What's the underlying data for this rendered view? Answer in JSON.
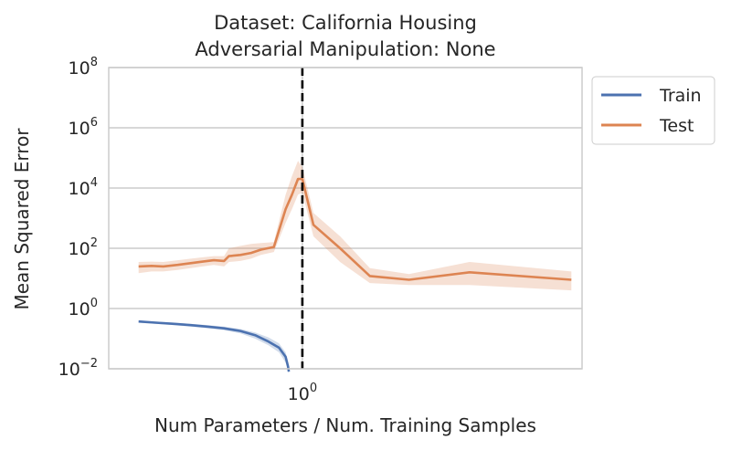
{
  "chart_data": {
    "type": "line",
    "title": "Dataset: California Housing",
    "subtitle": "Adversarial Manipulation: None",
    "xlabel": "Num Parameters / Num. Training Samples",
    "ylabel": "Mean Squared Error",
    "xscale": "log",
    "yscale": "log",
    "xlim": [
      0.26,
      7.0
    ],
    "ylim": [
      0.01,
      100000000
    ],
    "x_ticks": [
      {
        "value": 1,
        "base": "10",
        "exp": "0"
      }
    ],
    "y_ticks": [
      {
        "value": 0.01,
        "base": "10",
        "exp": "−2"
      },
      {
        "value": 1,
        "base": "10",
        "exp": "0"
      },
      {
        "value": 100,
        "base": "10",
        "exp": "2"
      },
      {
        "value": 10000,
        "base": "10",
        "exp": "4"
      },
      {
        "value": 1000000,
        "base": "10",
        "exp": "6"
      },
      {
        "value": 100000000,
        "base": "10",
        "exp": "8"
      }
    ],
    "grid": true,
    "legend_position": "outside-top-right",
    "vline": {
      "x": 1,
      "style": "dashed",
      "color": "#000000"
    },
    "series": [
      {
        "name": "Train",
        "color": "#4c72b0",
        "x": [
          0.32,
          0.36,
          0.41,
          0.46,
          0.52,
          0.58,
          0.65,
          0.72,
          0.79,
          0.85,
          0.89,
          0.905,
          0.91
        ],
        "y": [
          0.37,
          0.34,
          0.31,
          0.28,
          0.25,
          0.22,
          0.18,
          0.13,
          0.08,
          0.05,
          0.025,
          0.012,
          0.008
        ],
        "lower": [
          0.34,
          0.31,
          0.28,
          0.25,
          0.22,
          0.19,
          0.15,
          0.1,
          0.06,
          0.035,
          0.016,
          0.009,
          0.007
        ],
        "upper": [
          0.4,
          0.37,
          0.34,
          0.31,
          0.28,
          0.25,
          0.21,
          0.16,
          0.11,
          0.07,
          0.035,
          0.016,
          0.01
        ]
      },
      {
        "name": "Test",
        "color": "#dd8452",
        "x": [
          0.32,
          0.35,
          0.38,
          0.42,
          0.46,
          0.5,
          0.54,
          0.58,
          0.6,
          0.65,
          0.7,
          0.75,
          0.82,
          0.89,
          0.93,
          0.97,
          1.0,
          1.08,
          1.3,
          1.6,
          2.1,
          3.2,
          6.5
        ],
        "y": [
          25,
          26,
          25,
          28,
          32,
          36,
          40,
          38,
          55,
          60,
          70,
          90,
          110,
          2000,
          6000,
          20000,
          20000,
          600,
          100,
          12,
          9,
          16,
          9
        ],
        "lower": [
          15,
          17,
          17,
          19,
          22,
          25,
          28,
          25,
          35,
          38,
          45,
          60,
          75,
          700,
          2000,
          6000,
          7000,
          250,
          35,
          7,
          6,
          6,
          4
        ],
        "upper": [
          35,
          36,
          35,
          40,
          45,
          50,
          55,
          55,
          100,
          120,
          140,
          150,
          160,
          6000,
          25000,
          80000,
          50000,
          1500,
          250,
          22,
          14,
          35,
          17
        ]
      }
    ]
  }
}
